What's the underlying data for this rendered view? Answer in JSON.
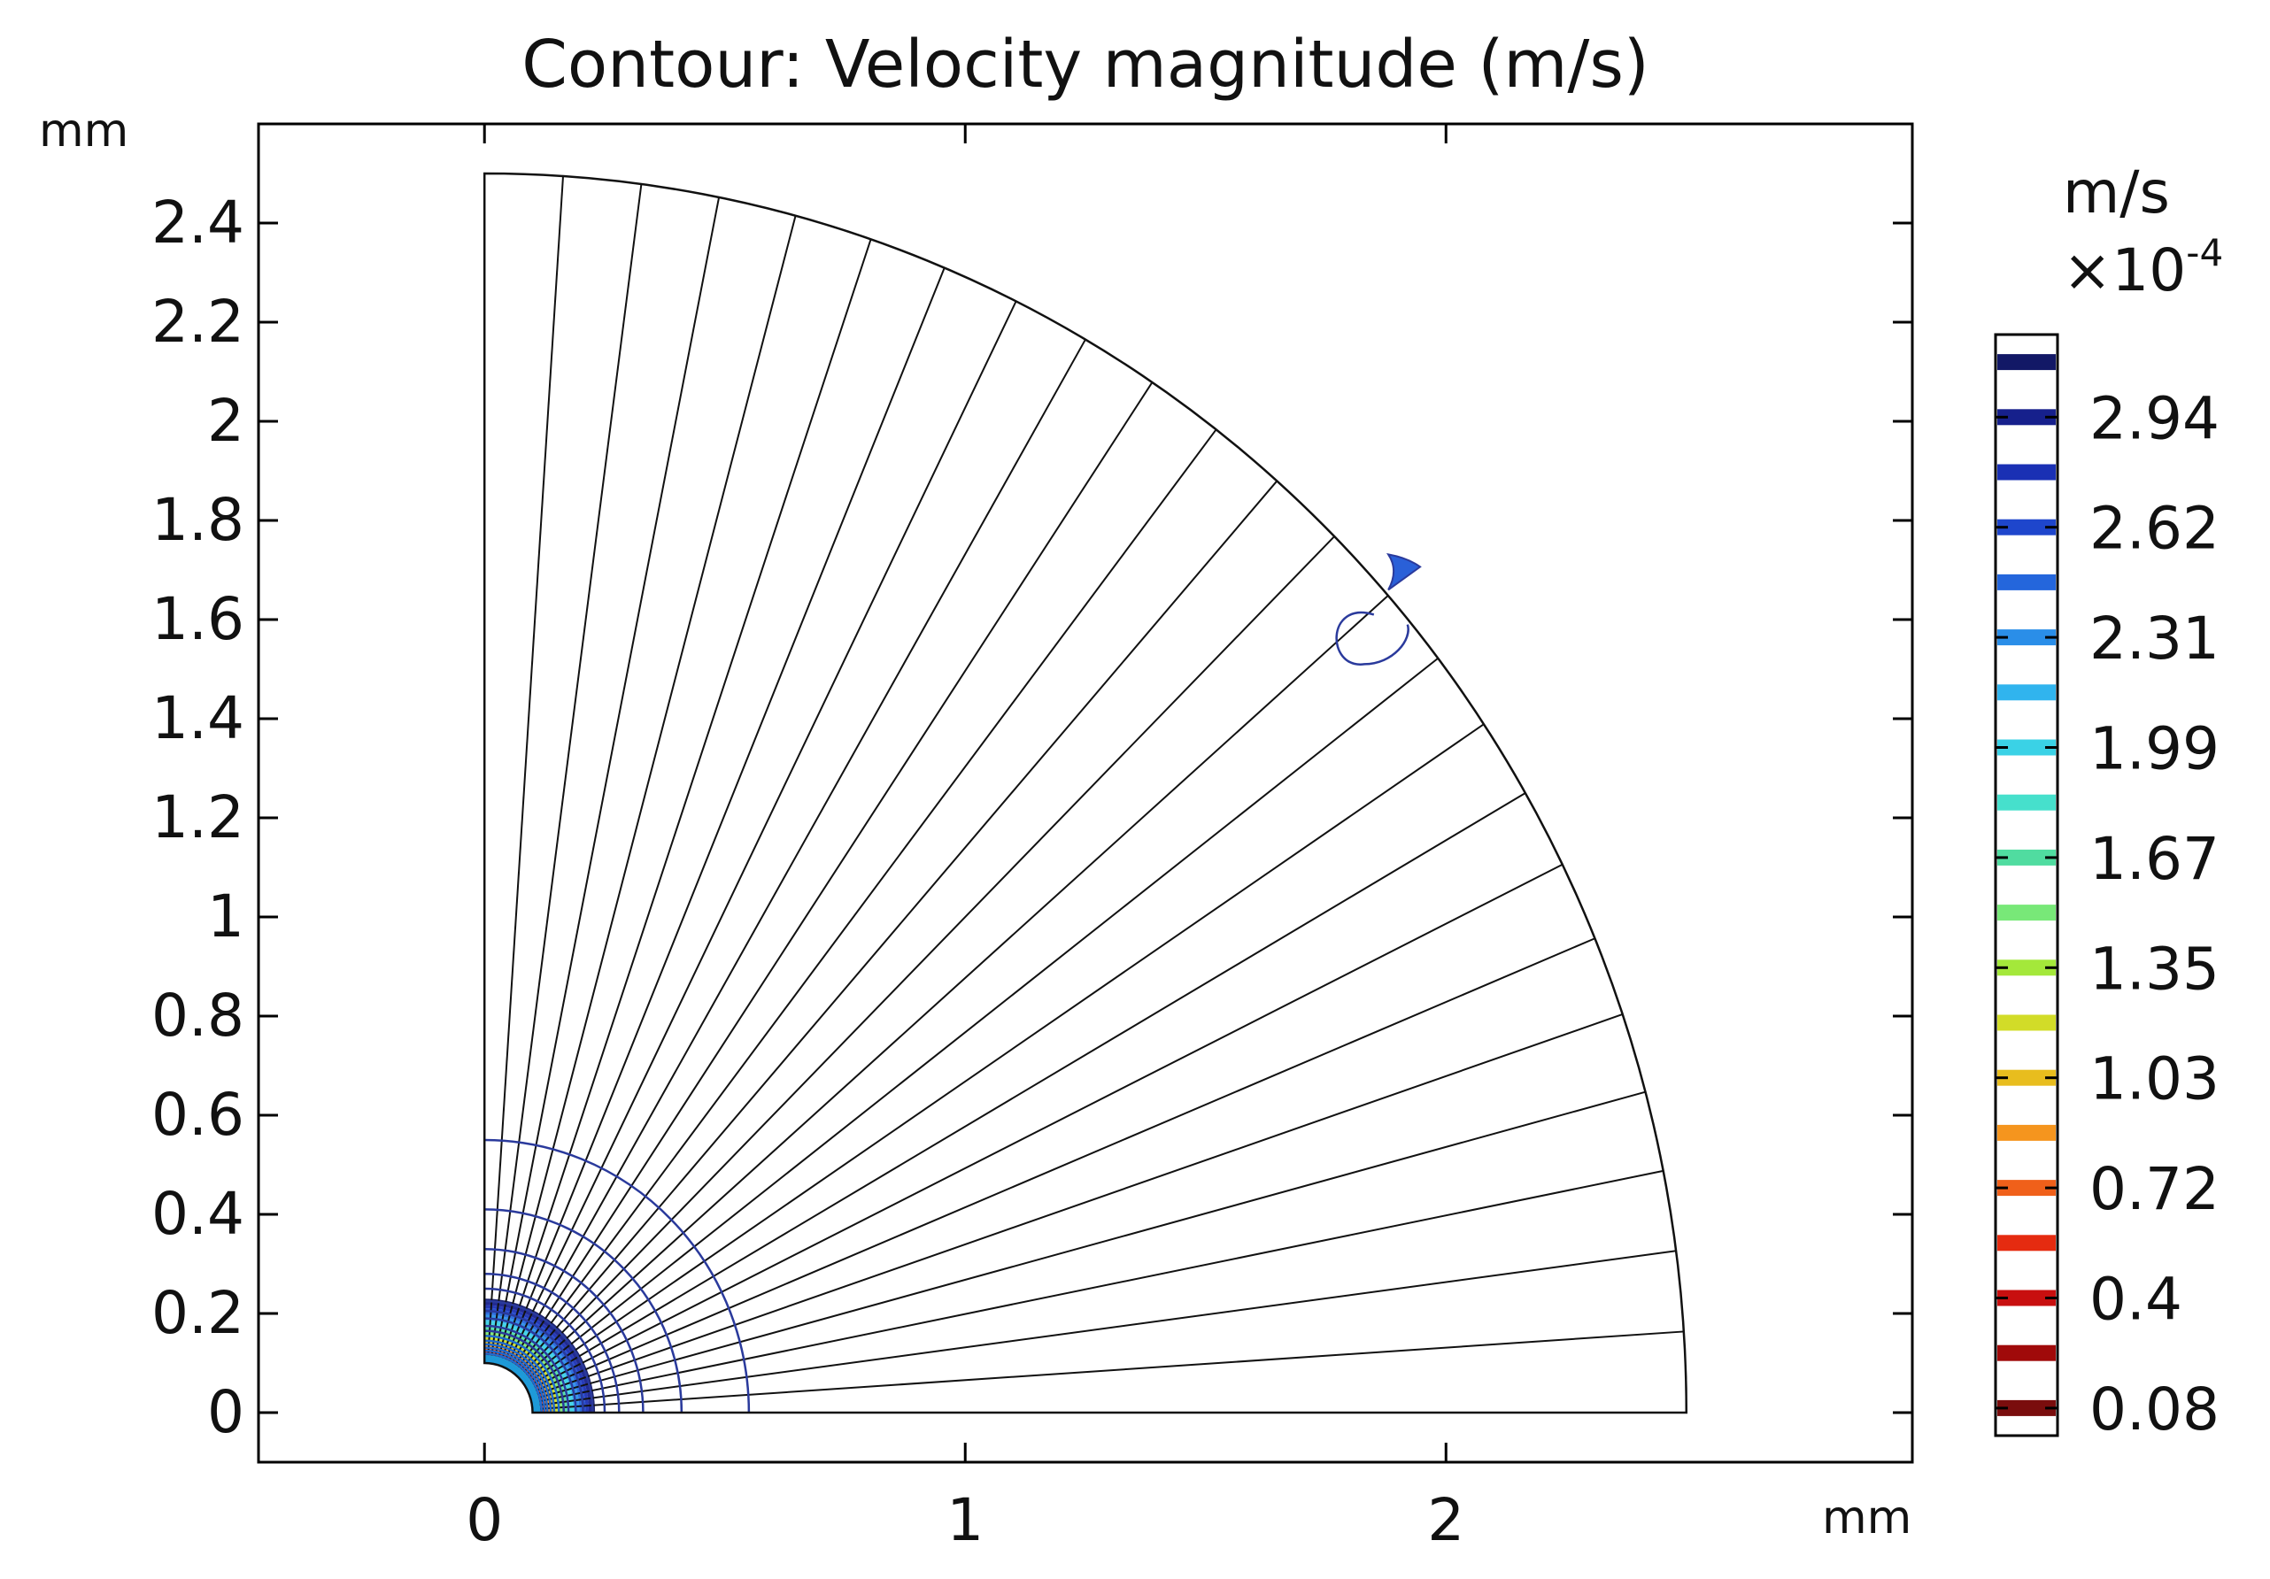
{
  "chart_data": {
    "type": "contour",
    "title": "Contour: Velocity magnitude (m/s)",
    "x_unit": "mm",
    "y_unit": "mm",
    "xlim": [
      -0.47,
      2.97
    ],
    "ylim": [
      -0.1,
      2.6
    ],
    "x_ticks": [
      "0",
      "1",
      "2"
    ],
    "x_tick_values": [
      0,
      1,
      2
    ],
    "y_ticks": [
      "0",
      "0.2",
      "0.4",
      "0.6",
      "0.8",
      "1",
      "1.2",
      "1.4",
      "1.6",
      "1.8",
      "2",
      "2.2",
      "2.4"
    ],
    "y_tick_values": [
      0,
      0.2,
      0.4,
      0.6,
      0.8,
      1.0,
      1.2,
      1.4,
      1.6,
      1.8,
      2.0,
      2.2,
      2.4
    ],
    "domain": {
      "shape": "quarter annulus",
      "inner_radius": 0.1,
      "outer_radius": 2.5,
      "angle_range_deg": [
        0,
        90
      ],
      "radial_mesh_lines": 24
    },
    "contour_radii_mm": [
      0.55,
      0.41,
      0.33,
      0.28,
      0.25,
      0.225,
      0.205,
      0.19,
      0.175,
      0.165,
      0.155,
      0.145,
      0.138,
      0.131,
      0.125,
      0.119,
      0.114,
      0.11,
      0.106,
      0.103
    ],
    "colorbar": {
      "unit": "m/s",
      "multiplier": "×10",
      "exponent": "-4",
      "tick_labels": [
        "2.94",
        "2.62",
        "2.31",
        "1.99",
        "1.67",
        "1.35",
        "1.03",
        "0.72",
        "0.4",
        "0.08"
      ],
      "colors": [
        "#7a0d0d",
        "#a00a0a",
        "#c80f0f",
        "#e52b10",
        "#f0601a",
        "#f5951e",
        "#e8bd1e",
        "#d2dc28",
        "#a4e83a",
        "#78e878",
        "#50dca0",
        "#46e0cc",
        "#3ad2e6",
        "#30b4ee",
        "#2a8ee8",
        "#2466dc",
        "#1e46cc",
        "#1a30b4",
        "#16208c",
        "#121866"
      ]
    }
  }
}
